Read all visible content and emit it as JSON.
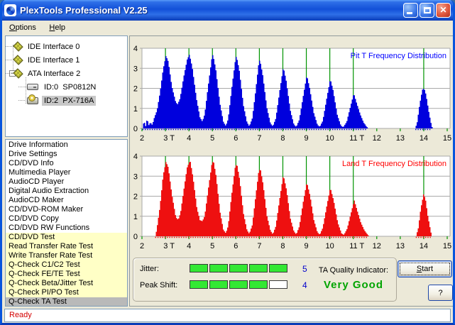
{
  "window": {
    "title": "PlexTools Professional V2.25",
    "status": "Ready"
  },
  "titlebar_buttons": {
    "minimize": "minimize",
    "maximize": "maximize",
    "close": "close"
  },
  "menu": {
    "items": [
      {
        "label": "Options",
        "accel": 0
      },
      {
        "label": "Help",
        "accel": 0
      }
    ]
  },
  "device_tree": {
    "items": [
      {
        "label": "IDE Interface 0",
        "icon": "interface-chip-icon",
        "level": 0,
        "expanded": false,
        "selected": false
      },
      {
        "label": "IDE Interface 1",
        "icon": "interface-chip-icon",
        "level": 0,
        "expanded": false,
        "selected": false
      },
      {
        "label": "ATA Interface 2",
        "icon": "interface-chip-icon",
        "level": 0,
        "expanded": true,
        "selected": false
      },
      {
        "label": "ID:0  SP0812N",
        "icon": "hard-drive-icon",
        "level": 1,
        "expanded": false,
        "selected": false
      },
      {
        "label": "ID:2  PX-716A",
        "icon": "cd-drive-icon",
        "level": 1,
        "expanded": false,
        "selected": true
      }
    ]
  },
  "function_list": {
    "items": [
      {
        "label": "Drive Information",
        "highlight": false,
        "selected": false
      },
      {
        "label": "Drive Settings",
        "highlight": false,
        "selected": false
      },
      {
        "label": "CD/DVD Info",
        "highlight": false,
        "selected": false
      },
      {
        "label": "Multimedia Player",
        "highlight": false,
        "selected": false
      },
      {
        "label": "AudioCD Player",
        "highlight": false,
        "selected": false
      },
      {
        "label": "Digital Audio Extraction",
        "highlight": false,
        "selected": false
      },
      {
        "label": "AudioCD Maker",
        "highlight": false,
        "selected": false
      },
      {
        "label": "CD/DVD-ROM Maker",
        "highlight": false,
        "selected": false
      },
      {
        "label": "CD/DVD Copy",
        "highlight": false,
        "selected": false
      },
      {
        "label": "CD/DVD RW Functions",
        "highlight": false,
        "selected": false
      },
      {
        "label": "CD/DVD Test",
        "highlight": true,
        "selected": false
      },
      {
        "label": "Read Transfer Rate Test",
        "highlight": true,
        "selected": false
      },
      {
        "label": "Write Transfer Rate Test",
        "highlight": true,
        "selected": false
      },
      {
        "label": "Q-Check C1/C2 Test",
        "highlight": true,
        "selected": false
      },
      {
        "label": "Q-Check FE/TE Test",
        "highlight": true,
        "selected": false
      },
      {
        "label": "Q-Check Beta/Jitter Test",
        "highlight": true,
        "selected": false
      },
      {
        "label": "Q-Check PI/PO Test",
        "highlight": true,
        "selected": false
      },
      {
        "label": "Q-Check TA Test",
        "highlight": true,
        "selected": true
      }
    ]
  },
  "results": {
    "jitter": {
      "label": "Jitter:",
      "segments_filled": 5,
      "segments_total": 5,
      "value": "5"
    },
    "peak_shift": {
      "label": "Peak Shift:",
      "segments_filled": 4,
      "segments_total": 5,
      "value": "4"
    },
    "ta_quality": {
      "label": "TA Quality Indicator:",
      "value": "Very Good",
      "value_color": "#00A400"
    },
    "start_button": "Start",
    "help_button": "?"
  },
  "colors": {
    "pit_fill": "#0000DD",
    "pit_title": "#0000FF",
    "land_fill": "#EE1010",
    "land_title": "#FF0000",
    "marker_green": "#009400",
    "grid": "#A9A9A9",
    "segment_green": "#33E833",
    "value_blue": "#0000CC",
    "status_red": "#D40000"
  },
  "chart_data": [
    {
      "type": "area",
      "title": "Pit T Frequency Distribution",
      "color": "#0000DD",
      "title_color": "#0000FF",
      "xlim": [
        2,
        15.12
      ],
      "ylim": [
        0,
        4
      ],
      "x_tick_values": [
        2,
        3,
        4,
        5,
        6,
        7,
        8,
        9,
        10,
        11,
        12,
        13,
        14,
        15
      ],
      "x_ticks": [
        "2",
        "3 T",
        "4",
        "5",
        "6",
        "7",
        "8",
        "9",
        "10",
        "11 T",
        "12",
        "13",
        "14",
        "15"
      ],
      "y_ticks": [
        0,
        1,
        2,
        3,
        4
      ],
      "marker_lines": [
        3,
        4,
        5,
        6,
        7,
        8,
        9,
        10,
        11,
        14
      ],
      "marker_color": "#009400",
      "grid": true,
      "legend_position": "top-right",
      "peaks": [
        {
          "t": 3,
          "h": 3.8
        },
        {
          "t": 4,
          "h": 3.75
        },
        {
          "t": 5,
          "h": 3.6
        },
        {
          "t": 6,
          "h": 3.45
        },
        {
          "t": 7,
          "h": 3.3
        },
        {
          "t": 8,
          "h": 3.05
        },
        {
          "t": 9,
          "h": 2.75
        },
        {
          "t": 10,
          "h": 2.6
        },
        {
          "t": 11,
          "h": 1.8
        },
        {
          "t": 14,
          "h": 1.9
        }
      ],
      "envelope": [
        [
          2.0,
          0
        ],
        [
          2.02,
          0.5
        ],
        [
          2.06,
          0.12
        ],
        [
          2.1,
          0.35
        ],
        [
          2.14,
          0.1
        ],
        [
          2.2,
          0.55
        ],
        [
          2.26,
          0.15
        ],
        [
          2.34,
          0.32
        ],
        [
          2.42,
          0.18
        ],
        [
          2.5,
          0.55
        ],
        [
          2.62,
          0.95
        ],
        [
          2.75,
          1.9
        ],
        [
          2.88,
          3.1
        ],
        [
          3.0,
          3.8
        ],
        [
          3.1,
          3.5
        ],
        [
          3.25,
          2.2
        ],
        [
          3.42,
          1.35
        ],
        [
          3.5,
          1.25
        ],
        [
          3.6,
          1.55
        ],
        [
          3.75,
          2.6
        ],
        [
          3.9,
          3.5
        ],
        [
          4.0,
          3.75
        ],
        [
          4.12,
          3.1
        ],
        [
          4.3,
          1.5
        ],
        [
          4.45,
          0.55
        ],
        [
          4.55,
          0.35
        ],
        [
          4.65,
          0.7
        ],
        [
          4.8,
          2.1
        ],
        [
          4.95,
          3.4
        ],
        [
          5.0,
          3.6
        ],
        [
          5.12,
          2.9
        ],
        [
          5.3,
          1.2
        ],
        [
          5.45,
          0.3
        ],
        [
          5.55,
          0.12
        ],
        [
          5.65,
          0.45
        ],
        [
          5.8,
          1.9
        ],
        [
          5.95,
          3.2
        ],
        [
          6.0,
          3.45
        ],
        [
          6.12,
          2.8
        ],
        [
          6.3,
          1.1
        ],
        [
          6.45,
          0.3
        ],
        [
          6.55,
          0.1
        ],
        [
          6.68,
          0.5
        ],
        [
          6.82,
          1.8
        ],
        [
          6.95,
          3.1
        ],
        [
          7.0,
          3.3
        ],
        [
          7.12,
          2.6
        ],
        [
          7.3,
          1.0
        ],
        [
          7.45,
          0.25
        ],
        [
          7.55,
          0.1
        ],
        [
          7.68,
          0.5
        ],
        [
          7.85,
          1.9
        ],
        [
          8.0,
          3.05
        ],
        [
          8.12,
          2.4
        ],
        [
          8.3,
          0.9
        ],
        [
          8.45,
          0.2
        ],
        [
          8.55,
          0.08
        ],
        [
          8.68,
          0.45
        ],
        [
          8.85,
          1.7
        ],
        [
          9.0,
          2.75
        ],
        [
          9.12,
          2.1
        ],
        [
          9.3,
          0.8
        ],
        [
          9.45,
          0.2
        ],
        [
          9.55,
          0.08
        ],
        [
          9.68,
          0.4
        ],
        [
          9.85,
          1.6
        ],
        [
          10.0,
          2.6
        ],
        [
          10.12,
          2.0
        ],
        [
          10.3,
          0.7
        ],
        [
          10.45,
          0.15
        ],
        [
          10.55,
          0.06
        ],
        [
          10.7,
          0.35
        ],
        [
          10.85,
          1.1
        ],
        [
          11.0,
          1.8
        ],
        [
          11.12,
          1.3
        ],
        [
          11.28,
          0.7
        ],
        [
          11.42,
          0.3
        ],
        [
          11.55,
          0.08
        ],
        [
          11.62,
          0
        ],
        [
          13.62,
          0
        ],
        [
          13.7,
          0.3
        ],
        [
          13.8,
          1.1
        ],
        [
          13.92,
          1.85
        ],
        [
          14.0,
          1.9
        ],
        [
          14.08,
          1.6
        ],
        [
          14.18,
          0.9
        ],
        [
          14.28,
          0.3
        ],
        [
          14.35,
          0
        ],
        [
          15.12,
          0
        ]
      ]
    },
    {
      "type": "area",
      "title": "Land T Frequency Distribution",
      "color": "#EE1010",
      "title_color": "#FF0000",
      "xlim": [
        2,
        15.12
      ],
      "ylim": [
        0,
        4
      ],
      "x_tick_values": [
        2,
        3,
        4,
        5,
        6,
        7,
        8,
        9,
        10,
        11,
        12,
        13,
        14,
        15
      ],
      "x_ticks": [
        "2",
        "3 T",
        "4",
        "5",
        "6",
        "7",
        "8",
        "9",
        "10",
        "11 T",
        "12",
        "13",
        "14",
        "15"
      ],
      "y_ticks": [
        0,
        1,
        2,
        3,
        4
      ],
      "marker_lines": [
        3,
        4,
        5,
        6,
        7,
        8,
        9,
        10,
        11,
        14
      ],
      "marker_color": "#009400",
      "grid": true,
      "legend_position": "top-right",
      "peaks": [
        {
          "t": 3,
          "h": 3.9
        },
        {
          "t": 4,
          "h": 3.85
        },
        {
          "t": 5,
          "h": 3.7
        },
        {
          "t": 6,
          "h": 3.45
        },
        {
          "t": 7,
          "h": 3.25
        },
        {
          "t": 8,
          "h": 3.05
        },
        {
          "t": 9,
          "h": 2.8
        },
        {
          "t": 10,
          "h": 2.55
        },
        {
          "t": 11,
          "h": 1.85
        },
        {
          "t": 14,
          "h": 2.0
        }
      ],
      "envelope": [
        [
          2.55,
          0
        ],
        [
          2.6,
          0.3
        ],
        [
          2.66,
          0.8
        ],
        [
          2.75,
          1.6
        ],
        [
          2.88,
          3.2
        ],
        [
          3.0,
          3.9
        ],
        [
          3.1,
          3.6
        ],
        [
          3.25,
          2.2
        ],
        [
          3.42,
          1.0
        ],
        [
          3.52,
          0.85
        ],
        [
          3.62,
          1.2
        ],
        [
          3.75,
          2.3
        ],
        [
          3.9,
          3.5
        ],
        [
          4.03,
          3.85
        ],
        [
          4.15,
          3.0
        ],
        [
          4.32,
          1.4
        ],
        [
          4.45,
          0.8
        ],
        [
          4.55,
          0.75
        ],
        [
          4.65,
          1.0
        ],
        [
          4.8,
          2.3
        ],
        [
          4.95,
          3.5
        ],
        [
          5.02,
          3.7
        ],
        [
          5.14,
          2.9
        ],
        [
          5.3,
          1.2
        ],
        [
          5.45,
          0.3
        ],
        [
          5.55,
          0.15
        ],
        [
          5.65,
          0.5
        ],
        [
          5.8,
          2.0
        ],
        [
          5.95,
          3.3
        ],
        [
          6.02,
          3.45
        ],
        [
          6.14,
          2.7
        ],
        [
          6.3,
          1.1
        ],
        [
          6.45,
          0.3
        ],
        [
          6.55,
          0.12
        ],
        [
          6.68,
          0.55
        ],
        [
          6.82,
          1.9
        ],
        [
          6.95,
          3.1
        ],
        [
          7.02,
          3.25
        ],
        [
          7.14,
          2.5
        ],
        [
          7.3,
          1.0
        ],
        [
          7.45,
          0.28
        ],
        [
          7.55,
          0.1
        ],
        [
          7.68,
          0.5
        ],
        [
          7.85,
          1.9
        ],
        [
          8.0,
          3.05
        ],
        [
          8.14,
          2.3
        ],
        [
          8.3,
          0.9
        ],
        [
          8.45,
          0.25
        ],
        [
          8.55,
          0.1
        ],
        [
          8.68,
          0.5
        ],
        [
          8.85,
          1.8
        ],
        [
          9.0,
          2.8
        ],
        [
          9.14,
          2.1
        ],
        [
          9.3,
          0.85
        ],
        [
          9.45,
          0.22
        ],
        [
          9.55,
          0.08
        ],
        [
          9.68,
          0.45
        ],
        [
          9.85,
          1.6
        ],
        [
          10.0,
          2.55
        ],
        [
          10.14,
          1.9
        ],
        [
          10.32,
          0.7
        ],
        [
          10.48,
          0.15
        ],
        [
          10.58,
          0.08
        ],
        [
          10.72,
          0.4
        ],
        [
          10.88,
          1.2
        ],
        [
          11.02,
          1.85
        ],
        [
          11.15,
          1.3
        ],
        [
          11.3,
          0.7
        ],
        [
          11.45,
          0.3
        ],
        [
          11.58,
          0.1
        ],
        [
          11.65,
          0
        ],
        [
          13.65,
          0
        ],
        [
          13.75,
          0.4
        ],
        [
          13.85,
          1.3
        ],
        [
          13.97,
          2.0
        ],
        [
          14.05,
          1.8
        ],
        [
          14.15,
          1.0
        ],
        [
          14.25,
          0.4
        ],
        [
          14.32,
          0
        ],
        [
          15.12,
          0
        ]
      ]
    }
  ]
}
